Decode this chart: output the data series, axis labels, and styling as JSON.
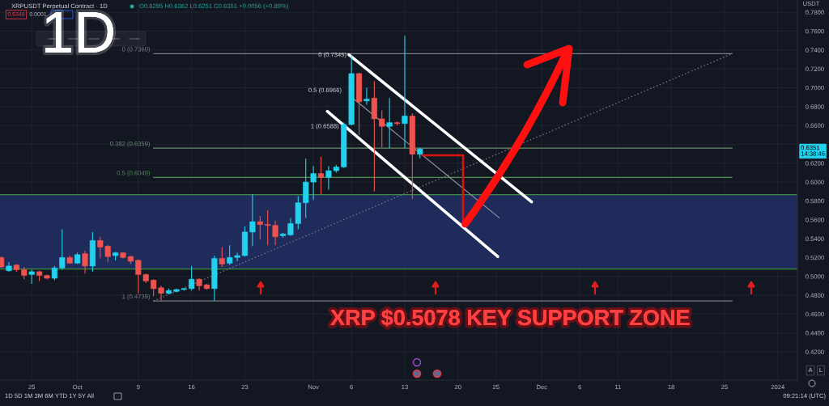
{
  "chart_data": {
    "type": "candlestick",
    "title": "XRPUSDT Perpetual Contract · 1D",
    "subtitle": "O0.6295 H0.6362 L0.6251 C0.6351 +0.0056 (+0.89%)",
    "ylabel": "USDT",
    "x": [
      "2023-09-21",
      "2023-09-22",
      "2023-09-23",
      "2023-09-24",
      "2023-09-25",
      "2023-09-26",
      "2023-09-27",
      "2023-09-28",
      "2023-09-29",
      "2023-09-30",
      "2023-10-01",
      "2023-10-02",
      "2023-10-03",
      "2023-10-04",
      "2023-10-05",
      "2023-10-06",
      "2023-10-07",
      "2023-10-08",
      "2023-10-09",
      "2023-10-10",
      "2023-10-11",
      "2023-10-12",
      "2023-10-13",
      "2023-10-14",
      "2023-10-15",
      "2023-10-16",
      "2023-10-17",
      "2023-10-18",
      "2023-10-19",
      "2023-10-20",
      "2023-10-21",
      "2023-10-22",
      "2023-10-23",
      "2023-10-24",
      "2023-10-25",
      "2023-10-26",
      "2023-10-27",
      "2023-10-28",
      "2023-10-29",
      "2023-10-30",
      "2023-10-31",
      "2023-11-01",
      "2023-11-02",
      "2023-11-03",
      "2023-11-04",
      "2023-11-05",
      "2023-11-06",
      "2023-11-07",
      "2023-11-08",
      "2023-11-09",
      "2023-11-10",
      "2023-11-11",
      "2023-11-12",
      "2023-11-13",
      "2023-11-14",
      "2023-11-15"
    ],
    "ohlc": [
      [
        0.52,
        0.521,
        0.509,
        0.51
      ],
      [
        0.506,
        0.515,
        0.505,
        0.511
      ],
      [
        0.512,
        0.513,
        0.505,
        0.507
      ],
      [
        0.507,
        0.51,
        0.497,
        0.501
      ],
      [
        0.502,
        0.507,
        0.492,
        0.505
      ],
      [
        0.505,
        0.506,
        0.495,
        0.501
      ],
      [
        0.501,
        0.502,
        0.497,
        0.498
      ],
      [
        0.498,
        0.511,
        0.496,
        0.509
      ],
      [
        0.509,
        0.55,
        0.507,
        0.52
      ],
      [
        0.52,
        0.522,
        0.513,
        0.514
      ],
      [
        0.514,
        0.525,
        0.513,
        0.523
      ],
      [
        0.524,
        0.527,
        0.503,
        0.511
      ],
      [
        0.511,
        0.547,
        0.505,
        0.538
      ],
      [
        0.538,
        0.542,
        0.519,
        0.531
      ],
      [
        0.532,
        0.533,
        0.515,
        0.521
      ],
      [
        0.522,
        0.526,
        0.517,
        0.525
      ],
      [
        0.525,
        0.526,
        0.519,
        0.52
      ],
      [
        0.521,
        0.522,
        0.513,
        0.516
      ],
      [
        0.517,
        0.518,
        0.482,
        0.502
      ],
      [
        0.502,
        0.503,
        0.493,
        0.495
      ],
      [
        0.496,
        0.497,
        0.479,
        0.487
      ],
      [
        0.488,
        0.49,
        0.474,
        0.482
      ],
      [
        0.482,
        0.487,
        0.481,
        0.485
      ],
      [
        0.484,
        0.487,
        0.483,
        0.486
      ],
      [
        0.486,
        0.488,
        0.485,
        0.487
      ],
      [
        0.487,
        0.511,
        0.485,
        0.497
      ],
      [
        0.497,
        0.498,
        0.485,
        0.49
      ],
      [
        0.491,
        0.492,
        0.486,
        0.487
      ],
      [
        0.487,
        0.522,
        0.474,
        0.519
      ],
      [
        0.519,
        0.531,
        0.51,
        0.513
      ],
      [
        0.514,
        0.533,
        0.512,
        0.52
      ],
      [
        0.52,
        0.525,
        0.516,
        0.522
      ],
      [
        0.522,
        0.553,
        0.521,
        0.547
      ],
      [
        0.547,
        0.587,
        0.532,
        0.558
      ],
      [
        0.558,
        0.564,
        0.539,
        0.555
      ],
      [
        0.555,
        0.57,
        0.533,
        0.554
      ],
      [
        0.554,
        0.559,
        0.533,
        0.542
      ],
      [
        0.543,
        0.546,
        0.541,
        0.545
      ],
      [
        0.544,
        0.562,
        0.543,
        0.556
      ],
      [
        0.556,
        0.585,
        0.55,
        0.578
      ],
      [
        0.578,
        0.625,
        0.562,
        0.6
      ],
      [
        0.6,
        0.617,
        0.581,
        0.609
      ],
      [
        0.609,
        0.627,
        0.587,
        0.605
      ],
      [
        0.605,
        0.617,
        0.592,
        0.612
      ],
      [
        0.612,
        0.618,
        0.61,
        0.616
      ],
      [
        0.616,
        0.663,
        0.615,
        0.661
      ],
      [
        0.661,
        0.734,
        0.66,
        0.715
      ],
      [
        0.715,
        0.716,
        0.65,
        0.685
      ],
      [
        0.686,
        0.7,
        0.682,
        0.688
      ],
      [
        0.689,
        0.707,
        0.59,
        0.667
      ],
      [
        0.667,
        0.676,
        0.637,
        0.659
      ],
      [
        0.659,
        0.689,
        0.636,
        0.663
      ],
      [
        0.663,
        0.664,
        0.66,
        0.662
      ],
      [
        0.662,
        0.755,
        0.636,
        0.67
      ],
      [
        0.67,
        0.673,
        0.582,
        0.6295
      ],
      [
        0.6295,
        0.6362,
        0.6251,
        0.6351
      ]
    ],
    "colors": [
      "#ef5350",
      "#22d1ee",
      "#ef5350",
      "#ef5350",
      "#22d1ee",
      "#ef5350",
      "#ef5350",
      "#22d1ee",
      "#22d1ee",
      "#ef5350",
      "#22d1ee",
      "#ef5350",
      "#22d1ee",
      "#ef5350",
      "#ef5350",
      "#22d1ee",
      "#ef5350",
      "#ef5350",
      "#ef5350",
      "#ef5350",
      "#ef5350",
      "#ef5350",
      "#22d1ee",
      "#22d1ee",
      "#22d1ee",
      "#22d1ee",
      "#ef5350",
      "#ef5350",
      "#22d1ee",
      "#ef5350",
      "#22d1ee",
      "#22d1ee",
      "#22d1ee",
      "#22d1ee",
      "#ef5350",
      "#ef5350",
      "#ef5350",
      "#22d1ee",
      "#22d1ee",
      "#22d1ee",
      "#22d1ee",
      "#22d1ee",
      "#ef5350",
      "#22d1ee",
      "#22d1ee",
      "#22d1ee",
      "#22d1ee",
      "#ef5350",
      "#22d1ee",
      "#ef5350",
      "#ef5350",
      "#22d1ee",
      "#ef5350",
      "#22d1ee",
      "#ef5350",
      "#22d1ee"
    ],
    "series": [
      {
        "type": "line",
        "name": "0 (0.7360)",
        "x": [
          "2023-10-11",
          "2023-12-26"
        ],
        "values": [
          0.736,
          0.736
        ],
        "color": "#787b86"
      },
      {
        "type": "line",
        "name": "0.382 (0.6359)",
        "x": [
          "2023-10-11",
          "2023-12-26"
        ],
        "values": [
          0.6359,
          0.6359
        ],
        "color": "#6a8f6d"
      },
      {
        "type": "line",
        "name": "0.5 (0.6049)",
        "x": [
          "2023-10-11",
          "2023-12-26"
        ],
        "values": [
          0.6049,
          0.6049
        ],
        "color": "#4f8f53"
      },
      {
        "type": "line",
        "name": "1 (0.4739)",
        "x": [
          "2023-10-11",
          "2023-12-26"
        ],
        "values": [
          0.4739,
          0.4739
        ],
        "color": "#787b86"
      },
      {
        "type": "line",
        "x": [
          "2023-10-11",
          "2023-12-26"
        ],
        "values": [
          0.4739,
          0.736
        ],
        "color": "#787b86",
        "line_style": "dotted"
      },
      {
        "type": "line",
        "x": [
          "2023-11-05T16:00",
          "2023-11-29T16:00"
        ],
        "values": [
          0.735,
          0.579
        ],
        "color": "#ffffff"
      },
      {
        "type": "line",
        "x": [
          "2023-11-02T20:00",
          "2023-11-25T05:00"
        ],
        "values": [
          0.675,
          0.521
        ],
        "color": "#ffffff"
      },
      {
        "type": "line",
        "x": [
          "2023-11-06T04:00",
          "2023-11-25T10:00"
        ],
        "values": [
          0.689,
          0.562
        ],
        "color": "#9598a1"
      }
    ],
    "bands": [
      {
        "axis": "y",
        "from": 0.5078,
        "to": 0.5866,
        "color": "#1f2b5b"
      }
    ],
    "ref_lines": [
      {
        "axis": "y",
        "value": 0.5866,
        "color": "#3d8b40"
      },
      {
        "axis": "y",
        "value": 0.5078,
        "color": "#3d8b40"
      }
    ],
    "annotations": [
      "1D",
      "XRP $0.5078 KEY SUPPORT ZONE",
      "0.6349",
      "0.0001",
      "0.6351\n14:38:46",
      "1D 5D 1M 3M 6M YTD 1Y 5Y All",
      "09:21:14 (UTC)",
      "A",
      "L",
      {
        "text": "0 (0.7345)",
        "x": "2023-11-05T12:00",
        "y": 0.7345
      },
      "0.5 (0.6966)",
      {
        "text": "1 (0.6588)",
        "x": "2023-11-04T12:00",
        "y": 0.6588
      }
    ],
    "xlim": [
      "2023-09-20T20:00",
      "2024-01-03T14:00"
    ],
    "xticks": [
      {
        "value": "2023-09-25",
        "label": "25"
      },
      {
        "value": "2023-10-01",
        "label": "Oct"
      },
      {
        "value": "2023-10-09",
        "label": "9"
      },
      {
        "value": "2023-10-16",
        "label": "16"
      },
      {
        "value": "2023-10-23",
        "label": "23"
      },
      {
        "value": "2023-11-01",
        "label": "Nov"
      },
      {
        "value": "2023-11-06",
        "label": "6"
      },
      {
        "value": "2023-11-13",
        "label": "13"
      },
      {
        "value": "2023-11-20",
        "label": "20"
      },
      {
        "value": "2023-11-25",
        "label": "25"
      },
      {
        "value": "2023-12-01",
        "label": "Dec"
      },
      {
        "value": "2023-12-06",
        "label": "6"
      },
      {
        "value": "2023-12-11",
        "label": "11"
      },
      {
        "value": "2023-12-18",
        "label": "18"
      },
      {
        "value": "2023-12-25",
        "label": "25"
      },
      {
        "value": "2024-01-01",
        "label": "2024"
      }
    ],
    "ylim": [
      0.39,
      0.793
    ],
    "yticks": [
      {
        "value": 0.42,
        "label": "0.4200"
      },
      {
        "value": 0.44,
        "label": "0.4400"
      },
      {
        "value": 0.46,
        "label": "0.4600"
      },
      {
        "value": 0.48,
        "label": "0.4800"
      },
      {
        "value": 0.5,
        "label": "0.5000"
      },
      {
        "value": 0.52,
        "label": "0.5200"
      },
      {
        "value": 0.54,
        "label": "0.5400"
      },
      {
        "value": 0.56,
        "label": "0.5600"
      },
      {
        "value": 0.58,
        "label": "0.5800"
      },
      {
        "value": 0.6,
        "label": "0.6000"
      },
      {
        "value": 0.62,
        "label": "0.6200"
      },
      {
        "value": 0.64,
        "label": null
      },
      {
        "value": 0.66,
        "label": "0.6600"
      },
      {
        "value": 0.68,
        "label": "0.6800"
      },
      {
        "value": 0.7,
        "label": "0.7000"
      },
      {
        "value": 0.72,
        "label": "0.7200"
      },
      {
        "value": 0.74,
        "label": "0.7400"
      },
      {
        "value": 0.76,
        "label": "0.7600"
      },
      {
        "value": 0.78,
        "label": "0.7800"
      }
    ],
    "grid": true
  }
}
